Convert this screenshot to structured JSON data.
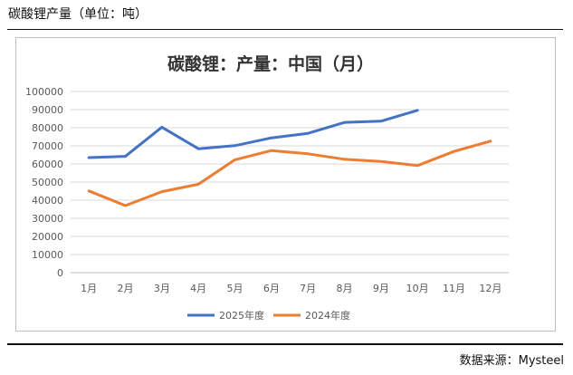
{
  "page": {
    "title": "碳酸锂产量（单位：吨）",
    "source": "数据来源：Mysteel"
  },
  "chart_data": {
    "type": "line",
    "title": "碳酸锂：产量：中国（月）",
    "categories": [
      "1月",
      "2月",
      "3月",
      "4月",
      "5月",
      "6月",
      "7月",
      "8月",
      "9月",
      "10月",
      "11月",
      "12月"
    ],
    "ylim": [
      0,
      100000
    ],
    "yticks": [
      0,
      10000,
      20000,
      30000,
      40000,
      50000,
      60000,
      70000,
      80000,
      90000,
      100000
    ],
    "grid": true,
    "legend_position": "bottom",
    "series": [
      {
        "name": "2025年度",
        "color": "#4472C4",
        "values": [
          63500,
          64200,
          80300,
          68400,
          70100,
          74400,
          76900,
          82900,
          83600,
          89600,
          null,
          null
        ]
      },
      {
        "name": "2024年度",
        "color": "#ED7D31",
        "values": [
          45100,
          37000,
          44700,
          48800,
          62300,
          67400,
          65600,
          62600,
          61400,
          59100,
          66900,
          72600
        ]
      }
    ]
  }
}
